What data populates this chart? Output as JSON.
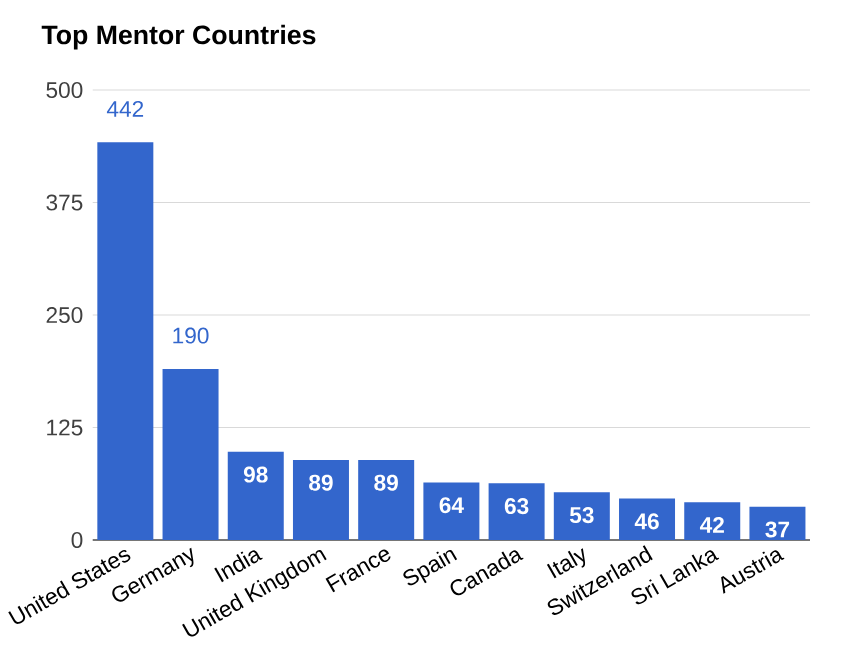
{
  "chart_data": {
    "type": "bar",
    "title": "Top Mentor Countries",
    "categories": [
      "United States",
      "Germany",
      "India",
      "United Kingdom",
      "France",
      "Spain",
      "Canada",
      "Italy",
      "Switzerland",
      "Sri Lanka",
      "Austria"
    ],
    "values": [
      442,
      190,
      98,
      89,
      89,
      64,
      63,
      53,
      46,
      42,
      37
    ],
    "color": "#3366cc",
    "ylim": [
      0,
      500
    ],
    "yticks": [
      0,
      125,
      250,
      375,
      500
    ],
    "grid": "y",
    "data_labels": true
  }
}
